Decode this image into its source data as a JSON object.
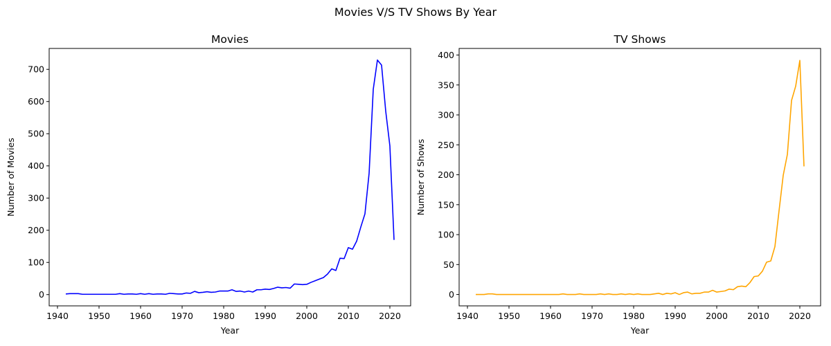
{
  "suptitle": "Movies V/S TV Shows By Year",
  "chart_data": [
    {
      "type": "line",
      "title": "Movies",
      "xlabel": "Year",
      "ylabel": "Number of Movies",
      "xlim": [
        1938,
        2025
      ],
      "ylim": [
        -35,
        765
      ],
      "xticks": [
        1940,
        1950,
        1960,
        1970,
        1980,
        1990,
        2000,
        2010,
        2020
      ],
      "yticks": [
        0,
        100,
        200,
        300,
        400,
        500,
        600,
        700
      ],
      "grid": false,
      "series": [
        {
          "color": "#0000ff",
          "x": [
            1942,
            1943,
            1944,
            1945,
            1946,
            1947,
            1948,
            1949,
            1950,
            1951,
            1952,
            1953,
            1954,
            1955,
            1956,
            1957,
            1958,
            1959,
            1960,
            1961,
            1962,
            1963,
            1964,
            1965,
            1966,
            1967,
            1968,
            1969,
            1970,
            1971,
            1972,
            1973,
            1974,
            1975,
            1976,
            1977,
            1978,
            1979,
            1980,
            1981,
            1982,
            1983,
            1984,
            1985,
            1986,
            1987,
            1988,
            1989,
            1990,
            1991,
            1992,
            1993,
            1994,
            1995,
            1996,
            1997,
            1998,
            1999,
            2000,
            2001,
            2002,
            2003,
            2004,
            2005,
            2006,
            2007,
            2008,
            2009,
            2010,
            2011,
            2012,
            2013,
            2014,
            2015,
            2016,
            2017,
            2018,
            2019,
            2020,
            2021
          ],
          "y": [
            2,
            3,
            3,
            3,
            1,
            1,
            1,
            1,
            1,
            1,
            1,
            1,
            1,
            3,
            1,
            2,
            2,
            1,
            3,
            1,
            3,
            1,
            2,
            2,
            1,
            4,
            3,
            2,
            2,
            5,
            4,
            10,
            6,
            7,
            9,
            7,
            8,
            11,
            11,
            11,
            15,
            10,
            11,
            8,
            11,
            8,
            15,
            15,
            17,
            16,
            19,
            23,
            21,
            22,
            20,
            33,
            32,
            31,
            32,
            38,
            43,
            48,
            53,
            64,
            80,
            75,
            113,
            112,
            146,
            141,
            166,
            210,
            251,
            377,
            638,
            729,
            713,
            570,
            462,
            170
          ]
        }
      ]
    },
    {
      "type": "line",
      "title": "TV Shows",
      "xlabel": "Year",
      "ylabel": "Number of Shows",
      "xlim": [
        1938,
        2025
      ],
      "ylim": [
        -19,
        411
      ],
      "xticks": [
        1940,
        1950,
        1960,
        1970,
        1980,
        1990,
        2000,
        2010,
        2020
      ],
      "yticks": [
        0,
        50,
        100,
        150,
        200,
        250,
        300,
        350,
        400
      ],
      "grid": false,
      "series": [
        {
          "color": "#ffa500",
          "x": [
            1942,
            1943,
            1944,
            1945,
            1946,
            1947,
            1948,
            1949,
            1950,
            1951,
            1952,
            1953,
            1954,
            1955,
            1956,
            1957,
            1958,
            1959,
            1960,
            1961,
            1962,
            1963,
            1964,
            1965,
            1966,
            1967,
            1968,
            1969,
            1970,
            1971,
            1972,
            1973,
            1974,
            1975,
            1976,
            1977,
            1978,
            1979,
            1980,
            1981,
            1982,
            1983,
            1984,
            1985,
            1986,
            1987,
            1988,
            1989,
            1990,
            1991,
            1992,
            1993,
            1994,
            1995,
            1996,
            1997,
            1998,
            1999,
            2000,
            2001,
            2002,
            2003,
            2004,
            2005,
            2006,
            2007,
            2008,
            2009,
            2010,
            2011,
            2012,
            2013,
            2014,
            2015,
            2016,
            2017,
            2018,
            2019,
            2020,
            2021
          ],
          "y": [
            0,
            0,
            0,
            1,
            1,
            0,
            0,
            0,
            0,
            0,
            0,
            0,
            0,
            0,
            0,
            0,
            0,
            0,
            0,
            0,
            0,
            1,
            0,
            0,
            0,
            1,
            0,
            0,
            0,
            0,
            1,
            0,
            1,
            0,
            0,
            1,
            0,
            1,
            0,
            1,
            0,
            0,
            0,
            1,
            2,
            0,
            2,
            1,
            3,
            0,
            3,
            4,
            1,
            2,
            2,
            4,
            4,
            7,
            4,
            5,
            6,
            9,
            8,
            13,
            14,
            13,
            20,
            30,
            31,
            39,
            54,
            56,
            80,
            140,
            199,
            234,
            324,
            348,
            391,
            214
          ]
        }
      ]
    }
  ]
}
